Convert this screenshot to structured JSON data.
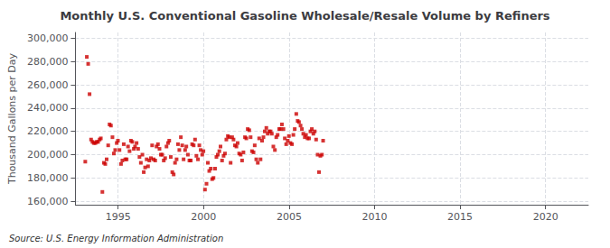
{
  "chart_data": {
    "type": "scatter",
    "title": "Monthly U.S. Conventional Gasoline Wholesale/Resale Volume by Refiners",
    "ylabel": "Thousand Gallons per Day",
    "annotation": "Source: U.S. Energy Information Administration",
    "color": "#CC0000",
    "marker": "square",
    "grid": true,
    "xlim": [
      1992.5,
      2022.5
    ],
    "xticks": [
      1995,
      2000,
      2005,
      2010,
      2015,
      2020
    ],
    "ylim": [
      157000,
      305000
    ],
    "yticks": [
      {
        "value": 160000,
        "label": "160,000"
      },
      {
        "value": 180000,
        "label": "180,000"
      },
      {
        "value": 200000,
        "label": "200,000"
      },
      {
        "value": 220000,
        "label": "220,000"
      },
      {
        "value": 240000,
        "label": "240,000"
      },
      {
        "value": 260000,
        "label": "260,000"
      },
      {
        "value": 280000,
        "label": "280,000"
      },
      {
        "value": 300000,
        "label": "300,000"
      }
    ],
    "x": [
      1993.08,
      1993.17,
      1993.25,
      1993.33,
      1993.42,
      1993.5,
      1993.58,
      1993.67,
      1993.75,
      1993.83,
      1993.92,
      1993.99,
      1994.08,
      1994.17,
      1994.25,
      1994.33,
      1994.42,
      1994.5,
      1994.58,
      1994.67,
      1994.75,
      1994.83,
      1994.92,
      1994.99,
      1995.08,
      1995.17,
      1995.25,
      1995.33,
      1995.42,
      1995.5,
      1995.58,
      1995.67,
      1995.75,
      1995.83,
      1995.92,
      1995.99,
      1996.08,
      1996.17,
      1996.25,
      1996.33,
      1996.42,
      1996.5,
      1996.58,
      1996.67,
      1996.75,
      1996.83,
      1996.92,
      1996.99,
      1997.08,
      1997.17,
      1997.25,
      1997.33,
      1997.42,
      1997.5,
      1997.58,
      1997.67,
      1997.75,
      1997.83,
      1997.92,
      1997.99,
      1998.08,
      1998.17,
      1998.25,
      1998.33,
      1998.42,
      1998.5,
      1998.58,
      1998.67,
      1998.75,
      1998.83,
      1998.92,
      1998.99,
      1999.08,
      1999.17,
      1999.25,
      1999.33,
      1999.42,
      1999.5,
      1999.58,
      1999.67,
      1999.75,
      1999.83,
      1999.92,
      1999.99,
      2000.08,
      2000.17,
      2000.25,
      2000.33,
      2000.42,
      2000.5,
      2000.58,
      2000.67,
      2000.75,
      2000.83,
      2000.92,
      2000.99,
      2001.08,
      2001.17,
      2001.25,
      2001.33,
      2001.42,
      2001.5,
      2001.58,
      2001.67,
      2001.75,
      2001.83,
      2001.92,
      2001.99,
      2002.08,
      2002.17,
      2002.25,
      2002.33,
      2002.42,
      2002.5,
      2002.58,
      2002.67,
      2002.75,
      2002.83,
      2002.92,
      2002.99,
      2003.08,
      2003.17,
      2003.25,
      2003.33,
      2003.42,
      2003.5,
      2003.58,
      2003.67,
      2003.75,
      2003.83,
      2003.92,
      2003.99,
      2004.08,
      2004.17,
      2004.25,
      2004.33,
      2004.42,
      2004.5,
      2004.58,
      2004.67,
      2004.75,
      2004.83,
      2004.92,
      2004.99,
      2005.08,
      2005.17,
      2005.25,
      2005.33,
      2005.42,
      2005.5,
      2005.58,
      2005.67,
      2005.75,
      2005.83,
      2005.92,
      2005.99,
      2006.08,
      2006.17,
      2006.25,
      2006.33,
      2006.42,
      2006.5,
      2006.58,
      2006.67,
      2006.75,
      2006.83,
      2006.92,
      2006.99
    ],
    "values": [
      194000,
      284000,
      278000,
      252000,
      213000,
      211000,
      210000,
      210000,
      211000,
      211000,
      213000,
      214000,
      168000,
      193000,
      192000,
      196000,
      208000,
      226000,
      225000,
      215000,
      201000,
      204000,
      210000,
      212000,
      204000,
      192000,
      195000,
      209000,
      196000,
      196000,
      207000,
      203000,
      212000,
      211000,
      205000,
      207000,
      210000,
      205000,
      198000,
      193000,
      200000,
      185000,
      189000,
      196000,
      190000,
      195000,
      197000,
      208000,
      196000,
      195000,
      207000,
      209000,
      205000,
      200000,
      200000,
      195000,
      197000,
      207000,
      210000,
      212000,
      198000,
      185000,
      183000,
      193000,
      196000,
      209000,
      204000,
      215000,
      208000,
      196000,
      204000,
      207000,
      200000,
      195000,
      195000,
      209000,
      208000,
      213000,
      199000,
      196000,
      208000,
      204000,
      200000,
      203000,
      170000,
      175000,
      193000,
      186000,
      188000,
      179000,
      180000,
      188000,
      198000,
      200000,
      203000,
      207000,
      195000,
      199000,
      201000,
      213000,
      216000,
      215000,
      193000,
      215000,
      213000,
      208000,
      207000,
      210000,
      201000,
      200000,
      195000,
      202000,
      215000,
      214000,
      222000,
      221000,
      215000,
      203000,
      202000,
      208000,
      196000,
      193000,
      214000,
      196000,
      212000,
      215000,
      220000,
      223000,
      218000,
      220000,
      220000,
      218000,
      207000,
      204000,
      215000,
      217000,
      222000,
      222000,
      226000,
      222000,
      214000,
      209000,
      212000,
      216000,
      210000,
      209000,
      217000,
      222000,
      235000,
      229000,
      228000,
      225000,
      222000,
      218000,
      215000,
      217000,
      214000,
      214000,
      220000,
      222000,
      218000,
      220000,
      213000,
      200000,
      185000,
      199000,
      200000,
      212000
    ]
  }
}
